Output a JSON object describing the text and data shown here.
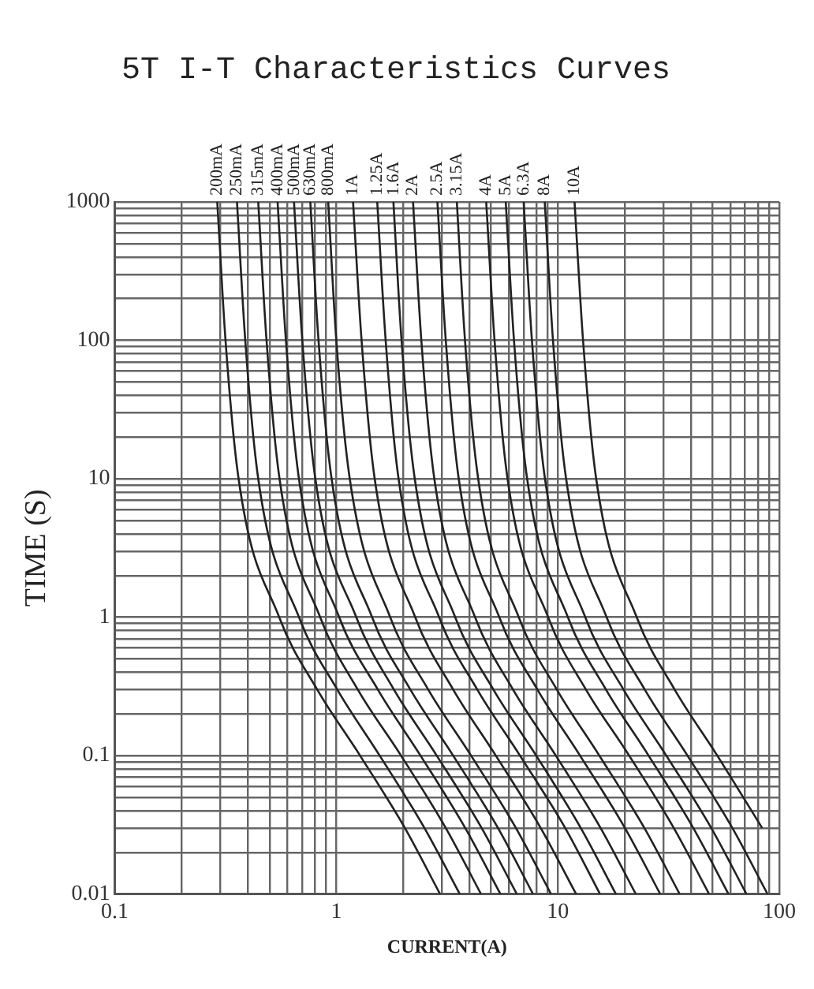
{
  "chart_data": {
    "type": "line",
    "title": "5T I-T Characteristics Curves",
    "xlabel": "CURRENT(A)",
    "ylabel": "TIME (S)",
    "log": "xy",
    "grid": true,
    "legend": false,
    "xlim": [
      0.1,
      100
    ],
    "ylim": [
      0.01,
      1000
    ],
    "xticks": [
      0.1,
      {
        "value": 0.2,
        "label": null
      },
      {
        "value": 0.3,
        "label": null
      },
      {
        "value": 0.4,
        "label": null
      },
      {
        "value": 0.5,
        "label": null
      },
      {
        "value": 0.6,
        "label": null
      },
      {
        "value": 0.7,
        "label": null
      },
      {
        "value": 0.8,
        "label": null
      },
      {
        "value": 0.9,
        "label": null
      },
      1,
      {
        "value": 2,
        "label": null
      },
      {
        "value": 3,
        "label": null
      },
      {
        "value": 4,
        "label": null
      },
      {
        "value": 5,
        "label": null
      },
      {
        "value": 6,
        "label": null
      },
      {
        "value": 7,
        "label": null
      },
      {
        "value": 8,
        "label": null
      },
      {
        "value": 9,
        "label": null
      },
      10,
      {
        "value": 20,
        "label": null
      },
      {
        "value": 30,
        "label": null
      },
      {
        "value": 40,
        "label": null
      },
      {
        "value": 50,
        "label": null
      },
      {
        "value": 60,
        "label": null
      },
      {
        "value": 70,
        "label": null
      },
      {
        "value": 80,
        "label": null
      },
      {
        "value": 90,
        "label": null
      },
      100
    ],
    "yticks": [
      0.01,
      {
        "value": 0.02,
        "label": null
      },
      {
        "value": 0.03,
        "label": null
      },
      {
        "value": 0.04,
        "label": null
      },
      {
        "value": 0.05,
        "label": null
      },
      {
        "value": 0.06,
        "label": null
      },
      {
        "value": 0.07,
        "label": null
      },
      {
        "value": 0.08,
        "label": null
      },
      {
        "value": 0.09,
        "label": null
      },
      0.1,
      {
        "value": 0.2,
        "label": null
      },
      {
        "value": 0.3,
        "label": null
      },
      {
        "value": 0.4,
        "label": null
      },
      {
        "value": 0.5,
        "label": null
      },
      {
        "value": 0.6,
        "label": null
      },
      {
        "value": 0.7,
        "label": null
      },
      {
        "value": 0.8,
        "label": null
      },
      {
        "value": 0.9,
        "label": null
      },
      1,
      {
        "value": 2,
        "label": null
      },
      {
        "value": 3,
        "label": null
      },
      {
        "value": 4,
        "label": null
      },
      {
        "value": 5,
        "label": null
      },
      {
        "value": 6,
        "label": null
      },
      {
        "value": 7,
        "label": null
      },
      {
        "value": 8,
        "label": null
      },
      {
        "value": 9,
        "label": null
      },
      10,
      {
        "value": 20,
        "label": null
      },
      {
        "value": 30,
        "label": null
      },
      {
        "value": 40,
        "label": null
      },
      {
        "value": 50,
        "label": null
      },
      {
        "value": 60,
        "label": null
      },
      {
        "value": 70,
        "label": null
      },
      {
        "value": 80,
        "label": null
      },
      {
        "value": 90,
        "label": null
      },
      100,
      {
        "value": 200,
        "label": null
      },
      {
        "value": 300,
        "label": null
      },
      {
        "value": 400,
        "label": null
      },
      {
        "value": 500,
        "label": null
      },
      {
        "value": 600,
        "label": null
      },
      {
        "value": 700,
        "label": null
      },
      {
        "value": 800,
        "label": null
      },
      {
        "value": 900,
        "label": null
      },
      1000
    ],
    "series": [
      {
        "name": "200mA",
        "color": "#222222",
        "x": [
          0.29,
          0.316,
          0.362,
          0.552,
          0.82,
          1.28,
          2.04,
          2.94
        ],
        "values": [
          1000,
          100,
          10,
          1,
          0.3,
          0.1,
          0.03,
          0.01
        ]
      },
      {
        "name": "250mA",
        "color": "#222222",
        "x": [
          0.356,
          0.388,
          0.444,
          0.678,
          1.01,
          1.57,
          2.5,
          3.61
        ],
        "values": [
          1000,
          100,
          10,
          1,
          0.3,
          0.1,
          0.03,
          0.01
        ]
      },
      {
        "name": "315mA",
        "color": "#222222",
        "x": [
          0.444,
          0.484,
          0.554,
          0.845,
          1.25,
          1.96,
          3.12,
          4.5
        ],
        "values": [
          1000,
          100,
          10,
          1,
          0.3,
          0.1,
          0.03,
          0.01
        ]
      },
      {
        "name": "400mA",
        "color": "#222222",
        "x": [
          0.543,
          0.592,
          0.678,
          1.03,
          1.54,
          2.4,
          3.82,
          5.51
        ],
        "values": [
          1000,
          100,
          10,
          1,
          0.3,
          0.1,
          0.03,
          0.01
        ]
      },
      {
        "name": "500mA",
        "color": "#222222",
        "x": [
          0.644,
          0.702,
          0.804,
          1.23,
          1.82,
          2.84,
          4.53,
          6.53
        ],
        "values": [
          1000,
          100,
          10,
          1,
          0.3,
          0.1,
          0.03,
          0.01
        ]
      },
      {
        "name": "630mA",
        "color": "#222222",
        "x": [
          0.763,
          0.831,
          0.952,
          1.45,
          2.16,
          3.37,
          5.37,
          7.73
        ],
        "values": [
          1000,
          100,
          10,
          1,
          0.3,
          0.1,
          0.03,
          0.01
        ]
      },
      {
        "name": "800mA",
        "color": "#222222",
        "x": [
          0.919,
          1.0,
          1.15,
          1.75,
          2.6,
          4.06,
          6.47,
          9.32
        ],
        "values": [
          1000,
          100,
          10,
          1,
          0.3,
          0.1,
          0.03,
          0.01
        ]
      },
      {
        "name": "1A",
        "color": "#222222",
        "x": [
          1.19,
          1.3,
          1.49,
          2.27,
          3.37,
          5.25,
          8.37,
          12.1
        ],
        "values": [
          1000,
          100,
          10,
          1,
          0.3,
          0.1,
          0.03,
          0.01
        ]
      },
      {
        "name": "1.25A",
        "color": "#222222",
        "x": [
          1.53,
          1.67,
          1.91,
          2.91,
          4.33,
          6.75,
          10.8,
          15.5
        ],
        "values": [
          1000,
          100,
          10,
          1,
          0.3,
          0.1,
          0.03,
          0.01
        ]
      },
      {
        "name": "1.6A",
        "color": "#222222",
        "x": [
          1.81,
          1.97,
          2.26,
          3.44,
          5.12,
          7.99,
          12.7,
          18.3
        ],
        "values": [
          1000,
          100,
          10,
          1,
          0.3,
          0.1,
          0.03,
          0.01
        ]
      },
      {
        "name": "2A",
        "color": "#222222",
        "x": [
          2.22,
          2.42,
          2.77,
          4.23,
          6.28,
          9.8,
          15.6,
          22.5
        ],
        "values": [
          1000,
          100,
          10,
          1,
          0.3,
          0.1,
          0.03,
          0.01
        ]
      },
      {
        "name": "2.5A",
        "color": "#222222",
        "x": [
          2.86,
          3.12,
          3.57,
          5.44,
          8.09,
          12.6,
          20.1,
          29.0
        ],
        "values": [
          1000,
          100,
          10,
          1,
          0.3,
          0.1,
          0.03,
          0.01
        ]
      },
      {
        "name": "3.15A",
        "color": "#222222",
        "x": [
          3.5,
          3.81,
          4.37,
          6.66,
          9.9,
          15.4,
          24.6,
          35.5
        ],
        "values": [
          1000,
          100,
          10,
          1,
          0.3,
          0.1,
          0.03,
          0.01
        ]
      },
      {
        "name": "4A",
        "color": "#222222",
        "x": [
          4.75,
          5.18,
          5.93,
          9.04,
          13.4,
          21.0,
          33.4,
          48.2
        ],
        "values": [
          1000,
          100,
          10,
          1,
          0.3,
          0.1,
          0.03,
          0.01
        ]
      },
      {
        "name": "5A",
        "color": "#222222",
        "x": [
          5.82,
          6.34,
          7.27,
          11.1,
          16.5,
          25.7,
          40.9,
          59.0
        ],
        "values": [
          1000,
          100,
          10,
          1,
          0.3,
          0.1,
          0.03,
          0.01
        ]
      },
      {
        "name": "6.3A",
        "color": "#222222",
        "x": [
          7.01,
          7.64,
          8.75,
          13.3,
          19.8,
          30.9,
          49.3,
          71.1
        ],
        "values": [
          1000,
          100,
          10,
          1,
          0.3,
          0.1,
          0.03,
          0.01
        ]
      },
      {
        "name": "8A",
        "color": "#222222",
        "x": [
          8.73,
          9.51,
          10.9,
          16.6,
          24.7,
          38.5,
          61.4,
          88.5
        ],
        "values": [
          1000,
          100,
          10,
          1,
          0.3,
          0.1,
          0.03,
          0.01
        ]
      },
      {
        "name": "10A",
        "color": "#222222",
        "x": [
          11.9,
          13.0,
          14.9,
          22.7,
          33.7,
          52.5,
          83.7
        ],
        "values": [
          1000,
          100,
          10,
          1,
          0.3,
          0.1,
          0.03
        ]
      }
    ]
  }
}
